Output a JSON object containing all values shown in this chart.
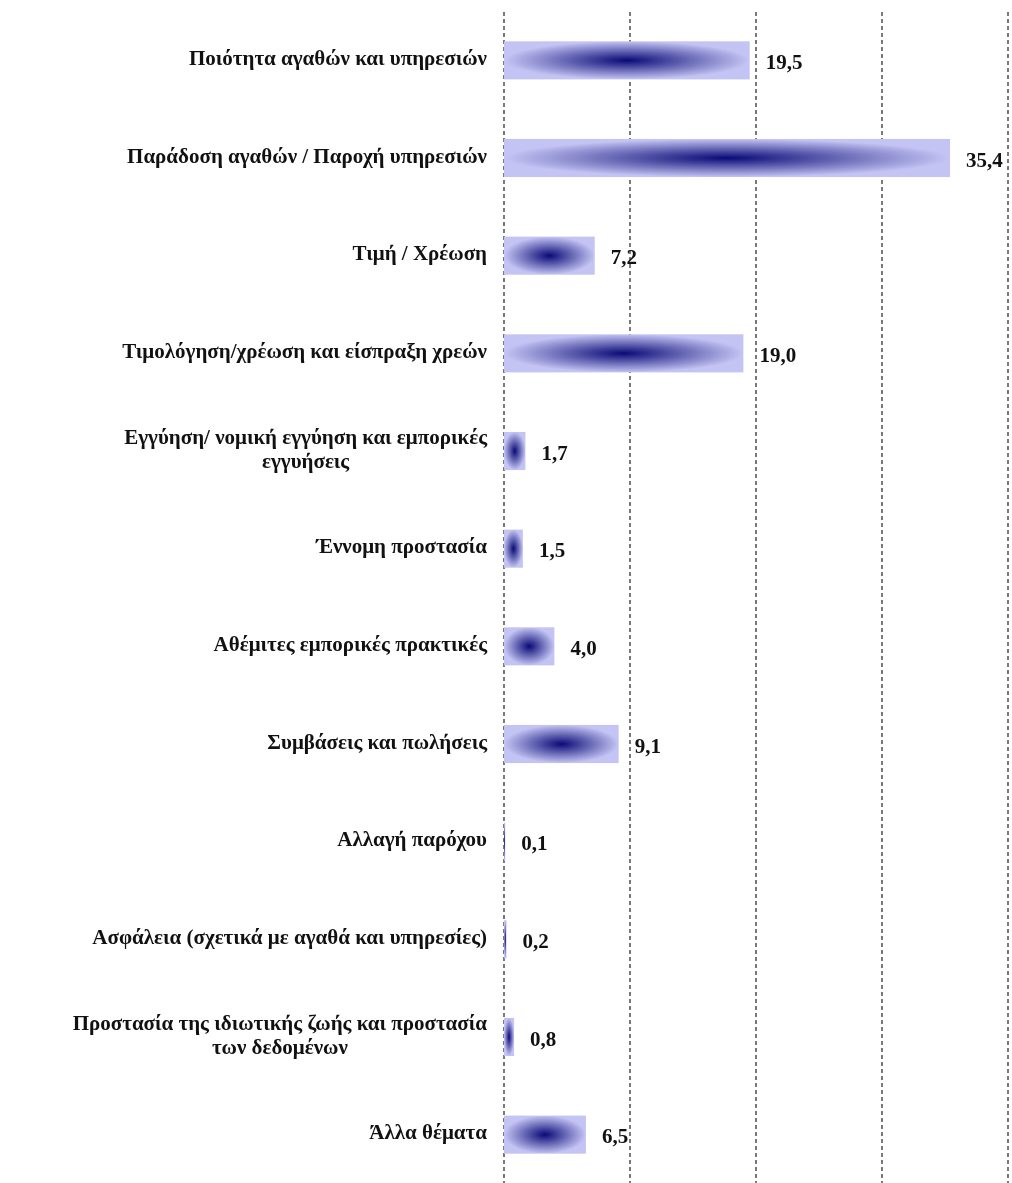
{
  "chart_data": {
    "type": "bar",
    "orientation": "horizontal",
    "categories": [
      "Ποιότητα αγαθών και υπηρεσιών",
      "Παράδοση αγαθών / Παροχή υπηρεσιών",
      "Τιμή / Χρέωση",
      "Τιμολόγηση/χρέωση και είσπραξη χρεών",
      "Εγγύηση/ νομική εγγύηση και εμπορικές εγγυήσεις",
      "Έννομη προστασία",
      "Αθέμιτες εμπορικές πρακτικές",
      "Συμβάσεις και πωλήσεις",
      "Αλλαγή παρόχου",
      "Ασφάλεια (σχετικά με αγαθά και υπηρεσίες)",
      "Προστασία της ιδιωτικής ζωής και προστασία των δεδομένων",
      "Άλλα θέματα"
    ],
    "values": [
      19.5,
      35.4,
      7.2,
      19.0,
      1.7,
      1.5,
      4.0,
      9.1,
      0.1,
      0.2,
      0.8,
      6.5
    ],
    "value_labels": [
      "19,5",
      "35,4",
      "7,2",
      "19,0",
      "1,7",
      "1,5",
      "4,0",
      "9,1",
      "0,1",
      "0,2",
      "0,8",
      "6,5"
    ],
    "color": "#c4c4f4",
    "xlim": [
      0,
      40
    ],
    "xticks": [
      {
        "value": 0,
        "label": null
      },
      {
        "value": 10,
        "label": null
      },
      {
        "value": 20,
        "label": null
      },
      {
        "value": 30,
        "label": null
      },
      {
        "value": 40,
        "label": null
      }
    ],
    "grid": "x",
    "tick_labels": "y",
    "line_style": "dashed"
  }
}
